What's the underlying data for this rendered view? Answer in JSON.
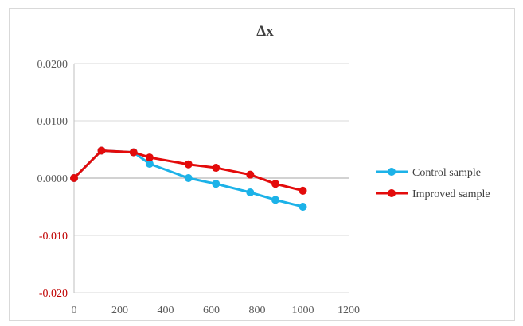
{
  "chart_data": {
    "type": "line",
    "title": "Δx",
    "xlabel": "",
    "ylabel": "",
    "xlim": [
      0,
      1200
    ],
    "ylim": [
      -0.02,
      0.02
    ],
    "x_ticks": [
      0,
      200,
      400,
      600,
      800,
      1000,
      1200
    ],
    "y_ticks": [
      0.02,
      0.01,
      0.0,
      -0.01,
      -0.02
    ],
    "y_tick_labels": [
      "0.0200",
      "0.0100",
      "0.0000",
      "-0.010",
      "-0.020"
    ],
    "legend_position": "right",
    "series": [
      {
        "name": "Control sample",
        "color": "#1CB2E8",
        "x": [
          0,
          120,
          260,
          330,
          500,
          620,
          770,
          880,
          1000
        ],
        "y": [
          0.0,
          0.0048,
          0.0045,
          0.0025,
          0.0,
          -0.001,
          -0.0025,
          -0.0038,
          -0.005
        ]
      },
      {
        "name": "Improved sample",
        "color": "#E30B0B",
        "x": [
          0,
          120,
          260,
          330,
          500,
          620,
          770,
          880,
          1000
        ],
        "y": [
          0.0,
          0.0048,
          0.0045,
          0.0036,
          0.0024,
          0.0018,
          0.0006,
          -0.001,
          -0.0022
        ]
      }
    ]
  }
}
